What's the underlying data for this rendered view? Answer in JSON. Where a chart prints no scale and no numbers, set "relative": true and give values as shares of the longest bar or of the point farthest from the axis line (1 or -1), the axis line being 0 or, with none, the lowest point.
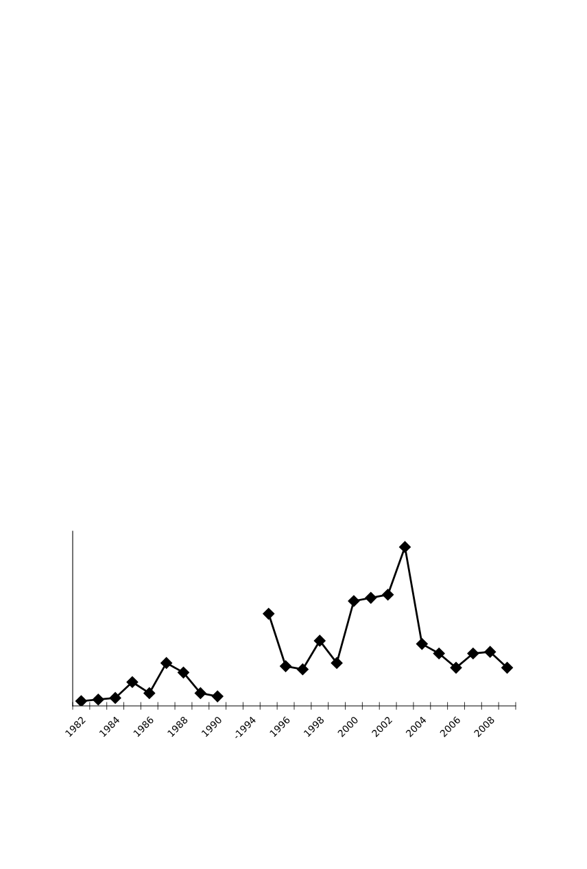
{
  "chart_data": {
    "type": "line",
    "relative": true,
    "categories": [
      "1982",
      null,
      "1984",
      null,
      "1986",
      null,
      "1988",
      null,
      "1990",
      null,
      "-1994",
      null,
      "1996",
      null,
      "1998",
      null,
      "2000",
      null,
      "2002",
      null,
      "2004",
      null,
      "2006",
      null,
      "2008",
      null
    ],
    "series": [
      {
        "color": "#000000",
        "values": [
          0.03,
          0.04,
          0.05,
          0.15,
          0.08,
          0.27,
          0.21,
          0.08,
          0.06,
          null,
          null,
          0.58,
          0.25,
          0.23,
          0.41,
          0.27,
          0.66,
          0.68,
          0.7,
          1,
          0.39,
          0.33,
          0.24,
          0.33,
          0.34,
          0.24
        ]
      }
    ],
    "marker": "diamond",
    "line_style": "solid",
    "grid": false,
    "legend": false
  }
}
